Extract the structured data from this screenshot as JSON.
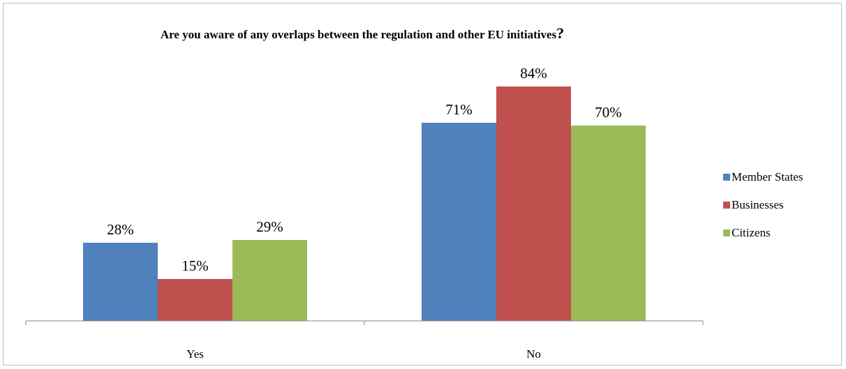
{
  "chart_data": {
    "type": "bar",
    "title": "Are you aware of any overlaps between the regulation and other EU initiatives",
    "title_suffix": "?",
    "categories": [
      "Yes",
      "No"
    ],
    "series": [
      {
        "name": "Member States",
        "color": "#4f81bd",
        "values": [
          28,
          71
        ],
        "labels": [
          "28%",
          "71%"
        ]
      },
      {
        "name": "Businesses",
        "color": "#c0504d",
        "values": [
          15,
          84
        ],
        "labels": [
          "15%",
          "84%"
        ]
      },
      {
        "name": "Citizens",
        "color": "#9bbb59",
        "values": [
          29,
          70
        ],
        "labels": [
          "29%",
          "70%"
        ]
      }
    ],
    "xlabel": "",
    "ylabel": "",
    "ylim": [
      0,
      100
    ],
    "grid": false,
    "legend_position": "right"
  }
}
